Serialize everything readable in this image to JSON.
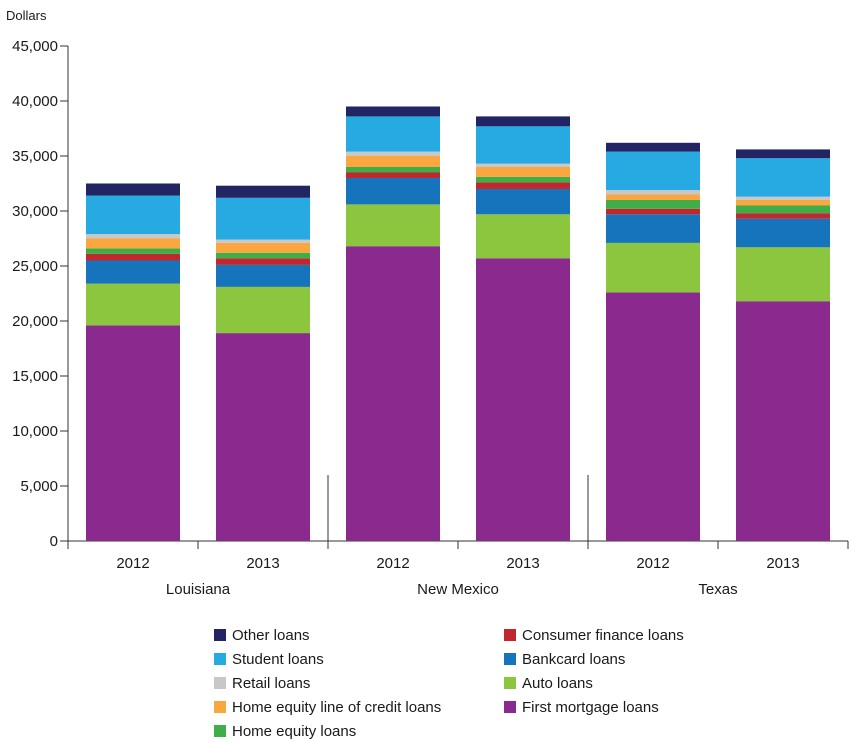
{
  "chart_data": {
    "type": "bar",
    "stacked": true,
    "ylabel": "Dollars",
    "ylim": [
      0,
      45000
    ],
    "yticks": [
      "0",
      "5,000",
      "10,000",
      "15,000",
      "20,000",
      "25,000",
      "30,000",
      "35,000",
      "40,000",
      "45,000"
    ],
    "groups": [
      "Louisiana",
      "New Mexico",
      "Texas"
    ],
    "categories": [
      "2012",
      "2013",
      "2012",
      "2013",
      "2012",
      "2013"
    ],
    "category_group": [
      0,
      0,
      1,
      1,
      2,
      2
    ],
    "series": [
      {
        "name": "First mortgage loans",
        "color": "#8b2a8e",
        "values": [
          19600,
          18900,
          26800,
          25700,
          22600,
          21800
        ]
      },
      {
        "name": "Auto loans",
        "color": "#8cc63f",
        "values": [
          3800,
          4200,
          3800,
          4000,
          4500,
          4900
        ]
      },
      {
        "name": "Bankcard loans",
        "color": "#1674bc",
        "values": [
          2100,
          2000,
          2400,
          2300,
          2600,
          2600
        ]
      },
      {
        "name": "Consumer finance loans",
        "color": "#c1272d",
        "values": [
          600,
          600,
          500,
          600,
          500,
          500
        ]
      },
      {
        "name": "Home equity loans",
        "color": "#3fae49",
        "values": [
          500,
          500,
          500,
          500,
          800,
          700
        ]
      },
      {
        "name": "Home equity line of credit loans",
        "color": "#f9a73e",
        "values": [
          900,
          900,
          1000,
          900,
          500,
          500
        ]
      },
      {
        "name": "Retail loans",
        "color": "#c8c8c8",
        "values": [
          400,
          300,
          400,
          300,
          400,
          300
        ]
      },
      {
        "name": "Student loans",
        "color": "#27aae1",
        "values": [
          3500,
          3800,
          3200,
          3400,
          3500,
          3500
        ]
      },
      {
        "name": "Other loans",
        "color": "#232463",
        "values": [
          1100,
          1100,
          900,
          900,
          800,
          800
        ]
      }
    ],
    "legend_order": [
      "Other loans",
      "Consumer finance loans",
      "Student loans",
      "Bankcard loans",
      "Retail loans",
      "Auto loans",
      "Home equity line of credit loans",
      "First mortgage loans",
      "Home equity loans"
    ]
  }
}
